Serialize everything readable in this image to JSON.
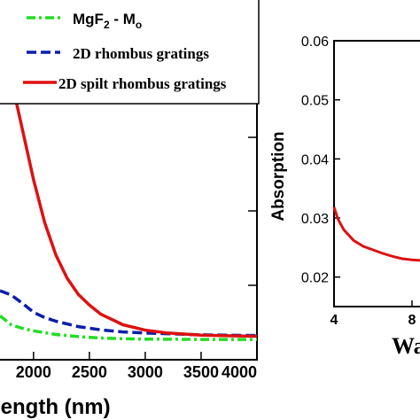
{
  "chart_data": [
    {
      "type": "line",
      "xlabel": "length (nm)",
      "ylabel": "",
      "xlim": [
        1700,
        4000
      ],
      "ylim": [
        0,
        1
      ],
      "x_ticks": [
        "2000",
        "2500",
        "3000",
        "3500",
        "4000"
      ],
      "x_tick_values": [
        2000,
        2500,
        3000,
        3500,
        4000
      ],
      "grid": false,
      "legend_position": "top",
      "legend": {
        "mgf2_main": "MgF",
        "mgf2_sub": "2",
        "mgf2_mid": " - M",
        "mgf2_sub2": "o",
        "rhombus": "2D rhombus gratings",
        "split": "2D spilt rhombus gratings"
      },
      "series": [
        {
          "key": "mgf2",
          "color": "#22dd22",
          "style": "dash-dot",
          "x": [
            1700,
            1800,
            1900,
            2000,
            2200,
            2400,
            2600,
            2800,
            3000,
            3500,
            4000
          ],
          "y": [
            0.12,
            0.095,
            0.085,
            0.078,
            0.068,
            0.062,
            0.058,
            0.056,
            0.055,
            0.054,
            0.054
          ]
        },
        {
          "key": "rhombus",
          "color": "#0b1fa8",
          "style": "dashed",
          "x": [
            1700,
            1800,
            1900,
            2000,
            2100,
            2200,
            2400,
            2600,
            2800,
            3000,
            3500,
            4000
          ],
          "y": [
            0.19,
            0.178,
            0.155,
            0.13,
            0.115,
            0.105,
            0.09,
            0.081,
            0.075,
            0.072,
            0.067,
            0.065
          ]
        },
        {
          "key": "split",
          "color": "#dd1111",
          "style": "solid",
          "x": [
            1800,
            1900,
            2000,
            2100,
            2200,
            2300,
            2400,
            2500,
            2600,
            2700,
            2800,
            3000,
            3200,
            3500,
            4000
          ],
          "y": [
            0.78,
            0.64,
            0.5,
            0.38,
            0.29,
            0.225,
            0.18,
            0.15,
            0.125,
            0.11,
            0.095,
            0.08,
            0.072,
            0.066,
            0.063
          ]
        }
      ]
    },
    {
      "type": "line",
      "xlabel": "Wa",
      "ylabel": "Absorption",
      "xlim": [
        4,
        9
      ],
      "ylim": [
        0.015,
        0.06
      ],
      "y_ticks": [
        "0.02",
        "0.03",
        "0.04",
        "0.05",
        "0.06"
      ],
      "y_tick_values": [
        0.02,
        0.03,
        0.04,
        0.05,
        0.06
      ],
      "x_ticks": [
        "4",
        "8"
      ],
      "x_tick_values": [
        4,
        8
      ],
      "grid": false,
      "series": [
        {
          "key": "split",
          "color": "#dd1111",
          "style": "solid",
          "x": [
            4.0,
            4.2,
            4.5,
            5.0,
            5.5,
            6.0,
            6.5,
            7.0,
            7.5,
            8.0,
            8.5,
            9.0
          ],
          "y": [
            0.0318,
            0.0298,
            0.028,
            0.0262,
            0.0252,
            0.0246,
            0.024,
            0.0235,
            0.0231,
            0.0229,
            0.0228,
            0.0227
          ]
        }
      ]
    }
  ]
}
